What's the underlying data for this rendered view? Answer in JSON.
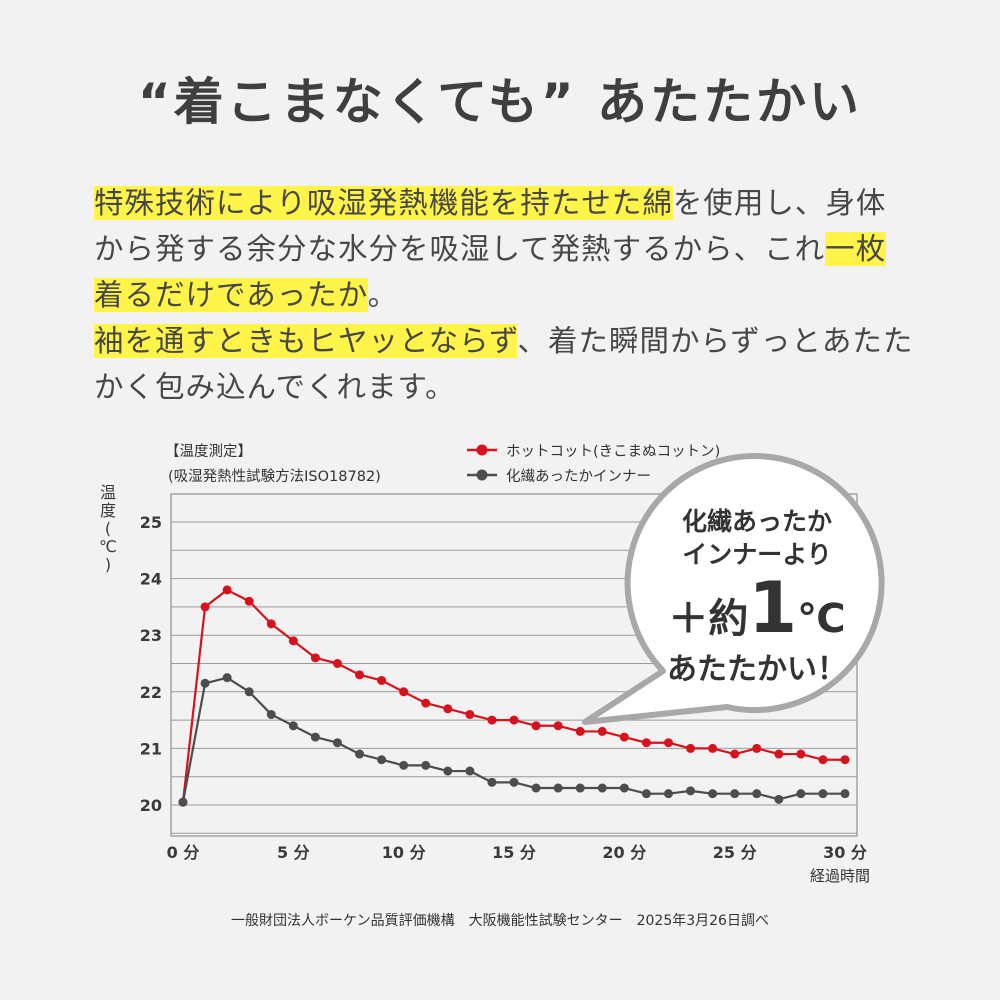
{
  "headline": "“着こまなくても” あたたかい",
  "description": {
    "p1": [
      {
        "text": "特殊技術により吸湿発熱機能を持たせた綿",
        "hl": true
      },
      {
        "text": "を使用し、身体から発する余分な水分を吸湿して発熱するから、これ",
        "hl": false
      },
      {
        "text": "一枚着るだけであったか",
        "hl": true
      },
      {
        "text": "。",
        "hl": false
      }
    ],
    "p2": [
      {
        "text": "袖を通すときもヒヤッとならず",
        "hl": true
      },
      {
        "text": "、着た瞬間からずっとあたたかく包み込んでくれます。",
        "hl": false
      }
    ]
  },
  "measurement": {
    "title": "【温度測定】",
    "method": "(吸湿発熱性試験方法ISO18782)"
  },
  "callout": {
    "line1": "化繊あったか",
    "line2": "インナーより",
    "big_prefix": "＋約",
    "big_number": "1",
    "big_unit": "℃",
    "line4": "あたたかい！"
  },
  "footer": "一般財団法人ボーケン品質評価機構　大阪機能性試験センター　2025年3月26日調べ",
  "colors": {
    "red_series": "#d8121c",
    "gray_series": "#4d4d4d",
    "highlight": "#fff54a"
  },
  "chart_data": {
    "type": "line",
    "ylabel": "温度(℃)",
    "xlabel": "経過時間",
    "ylim": [
      19.75,
      25.5
    ],
    "xlim": [
      0,
      30
    ],
    "x_ticks": [
      0,
      5,
      10,
      15,
      20,
      25,
      30
    ],
    "x_tick_labels": [
      "0 分",
      "5 分",
      "10 分",
      "15 分",
      "20 分",
      "25 分",
      "30 分"
    ],
    "y_ticks": [
      20,
      21,
      22,
      23,
      24,
      25
    ],
    "y_tick_labels": [
      "20",
      "21",
      "22",
      "23",
      "24",
      "25"
    ],
    "grid": true,
    "legend_position": "top",
    "x": [
      0,
      1,
      2,
      3,
      4,
      5,
      6,
      7,
      8,
      9,
      10,
      11,
      12,
      13,
      14,
      15,
      16,
      17,
      18,
      19,
      20,
      21,
      22,
      23,
      24,
      25,
      26,
      27,
      28,
      29,
      30
    ],
    "series": [
      {
        "name": "ホットコット(きこまぬコットン)",
        "color": "#d8121c",
        "values": [
          20.05,
          23.5,
          23.8,
          23.6,
          23.2,
          22.9,
          22.6,
          22.5,
          22.3,
          22.2,
          22.0,
          21.8,
          21.7,
          21.6,
          21.5,
          21.5,
          21.4,
          21.4,
          21.3,
          21.3,
          21.2,
          21.1,
          21.1,
          21.0,
          21.0,
          20.9,
          21.0,
          20.9,
          20.9,
          20.8,
          20.8
        ]
      },
      {
        "name": "化繊あったかインナー",
        "color": "#4d4d4d",
        "values": [
          20.05,
          22.15,
          22.25,
          22.0,
          21.6,
          21.4,
          21.2,
          21.1,
          20.9,
          20.8,
          20.7,
          20.7,
          20.6,
          20.6,
          20.4,
          20.4,
          20.3,
          20.3,
          20.3,
          20.3,
          20.3,
          20.2,
          20.2,
          20.25,
          20.2,
          20.2,
          20.2,
          20.1,
          20.2,
          20.2,
          20.2
        ]
      }
    ]
  }
}
